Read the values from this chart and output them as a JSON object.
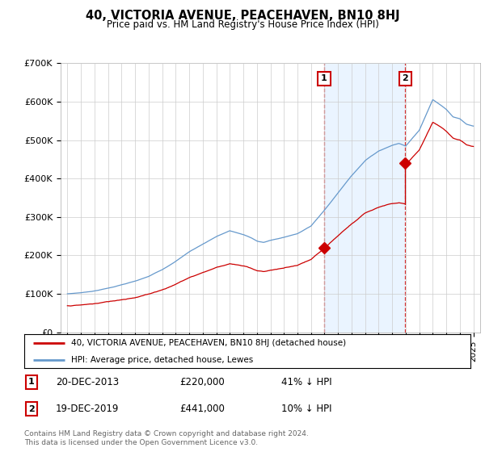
{
  "title": "40, VICTORIA AVENUE, PEACEHAVEN, BN10 8HJ",
  "subtitle": "Price paid vs. HM Land Registry's House Price Index (HPI)",
  "legend_line1": "40, VICTORIA AVENUE, PEACEHAVEN, BN10 8HJ (detached house)",
  "legend_line2": "HPI: Average price, detached house, Lewes",
  "footnote": "Contains HM Land Registry data © Crown copyright and database right 2024.\nThis data is licensed under the Open Government Licence v3.0.",
  "sale1_date": "20-DEC-2013",
  "sale1_price": 220000,
  "sale1_label": "41% ↓ HPI",
  "sale2_date": "19-DEC-2019",
  "sale2_price": 441000,
  "sale2_label": "10% ↓ HPI",
  "sale1_x": 2013.97,
  "sale2_x": 2019.97,
  "ylim": [
    0,
    700000
  ],
  "xlim_start": 1994.5,
  "xlim_end": 2025.5,
  "red_color": "#cc0000",
  "blue_color": "#6699cc",
  "shade_color": "#ddeeff",
  "grid_color": "#cccccc",
  "bg_color": "#ffffff",
  "annotation_box_color": "#cc0000",
  "yticks": [
    0,
    100000,
    200000,
    300000,
    400000,
    500000,
    600000,
    700000
  ],
  "ytick_labels": [
    "£0",
    "£100K",
    "£200K",
    "£300K",
    "£400K",
    "£500K",
    "£600K",
    "£700K"
  ],
  "xticks": [
    1995,
    1996,
    1997,
    1998,
    1999,
    2000,
    2001,
    2002,
    2003,
    2004,
    2005,
    2006,
    2007,
    2008,
    2009,
    2010,
    2011,
    2012,
    2013,
    2014,
    2015,
    2016,
    2017,
    2018,
    2019,
    2020,
    2021,
    2022,
    2023,
    2024,
    2025
  ]
}
